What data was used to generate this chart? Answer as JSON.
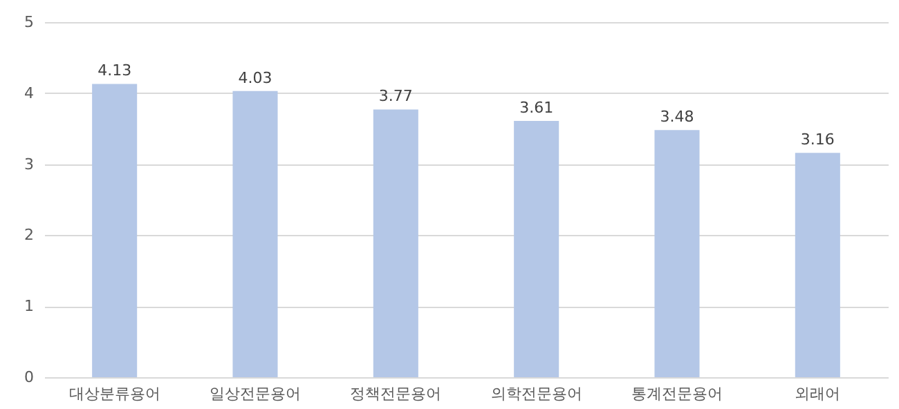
{
  "chart_data": {
    "type": "bar",
    "categories": [
      "대상분류용어",
      "일상전문용어",
      "정책전문용어",
      "의학전문용어",
      "통계전문용어",
      "외래어"
    ],
    "values": [
      4.13,
      4.03,
      3.77,
      3.61,
      3.48,
      3.16
    ],
    "color": "#b4c7e7",
    "ylim": [
      0,
      5
    ],
    "yticks": [
      0,
      1,
      2,
      3,
      4,
      5
    ],
    "grid": "y",
    "data_labels": true
  }
}
